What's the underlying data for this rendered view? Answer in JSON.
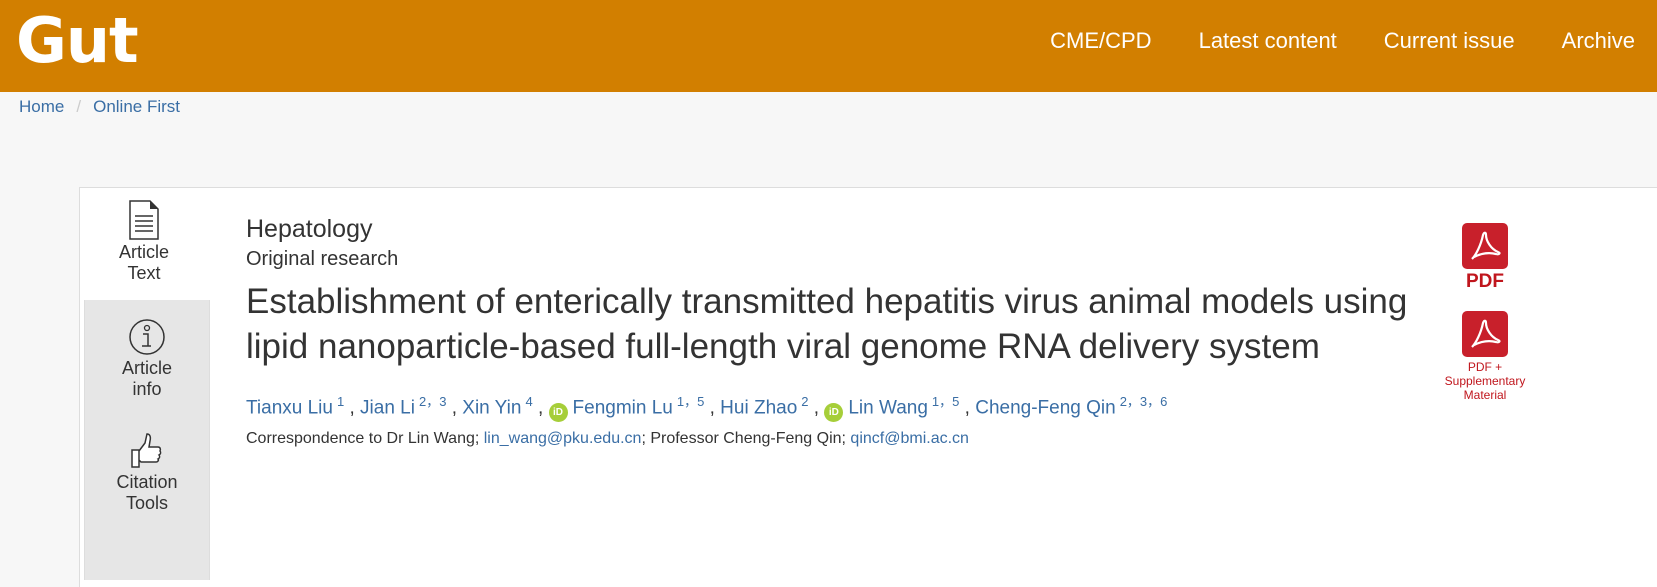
{
  "header": {
    "logo": "Gut",
    "nav": [
      "CME/CPD",
      "Latest content",
      "Current issue",
      "Archive"
    ]
  },
  "breadcrumb": [
    "Home",
    "/",
    "Online First"
  ],
  "tabs": [
    {
      "label1": "Article",
      "label2": "Text",
      "icon": "document-icon"
    },
    {
      "label1": "Article",
      "label2": "info",
      "icon": "info-icon"
    },
    {
      "label1": "Citation",
      "label2": "Tools",
      "icon": "thumbs-up-icon"
    }
  ],
  "article": {
    "category": "Hepatology",
    "type": "Original research",
    "title": "Establishment of enterically transmitted hepatitis virus animal models using lipid nanoparticle-based full-length viral genome RNA delivery system",
    "authors": [
      {
        "name": "Tianxu Liu",
        "sup": "1",
        "orcid": false
      },
      {
        "name": "Jian Li",
        "sup": "2，3",
        "orcid": false
      },
      {
        "name": "Xin Yin",
        "sup": "4",
        "orcid": false
      },
      {
        "name": "Fengmin Lu",
        "sup": "1，5",
        "orcid": true
      },
      {
        "name": "Hui Zhao",
        "sup": "2",
        "orcid": false
      },
      {
        "name": "Lin Wang",
        "sup": "1，5",
        "orcid": true
      },
      {
        "name": "Cheng-Feng Qin",
        "sup": "2，3，6",
        "orcid": false
      }
    ],
    "orcid_label": "iD",
    "corr_prefix": "Correspondence to Dr Lin Wang; ",
    "email1": "lin_wang@pku.edu.cn",
    "corr_mid": "; Professor Cheng-Feng Qin; ",
    "email2": "qincf@bmi.ac.cn"
  },
  "downloads": {
    "pdf": "PDF",
    "pdf_supp": [
      "PDF +",
      "Supplementary",
      "Material"
    ]
  },
  "colors": {
    "header": "#d27f00",
    "link": "#3a6ea5",
    "pdf": "#c8202b",
    "orcid": "#a6ce39"
  }
}
